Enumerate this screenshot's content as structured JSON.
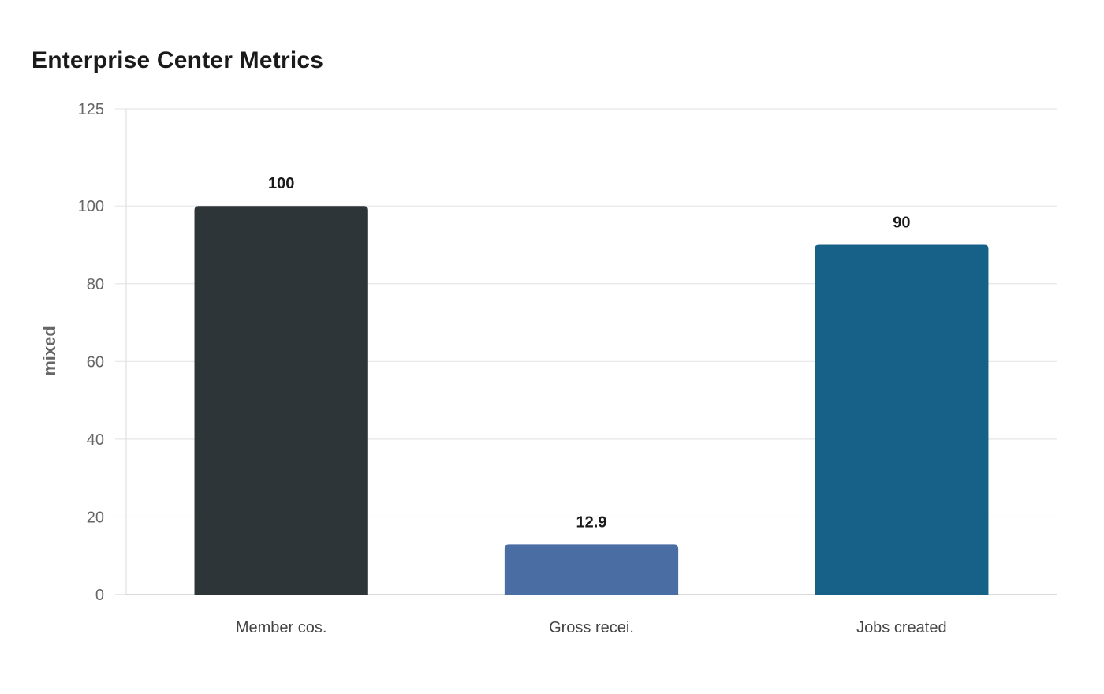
{
  "chart_data": {
    "type": "bar",
    "title": "Enterprise Center Metrics",
    "xlabel": "",
    "ylabel": "mixed",
    "categories": [
      "Member cos.",
      "Gross recei.",
      "Jobs created"
    ],
    "values": [
      100,
      12.9,
      90
    ],
    "value_labels": [
      "100",
      "12.9",
      "90"
    ],
    "colors": [
      "#2e3538",
      "#4a6da4",
      "#176189"
    ],
    "ylim": [
      0,
      125
    ],
    "yticks": [
      0,
      20,
      40,
      60,
      80,
      100,
      125
    ],
    "grid": true,
    "legend": "none"
  }
}
